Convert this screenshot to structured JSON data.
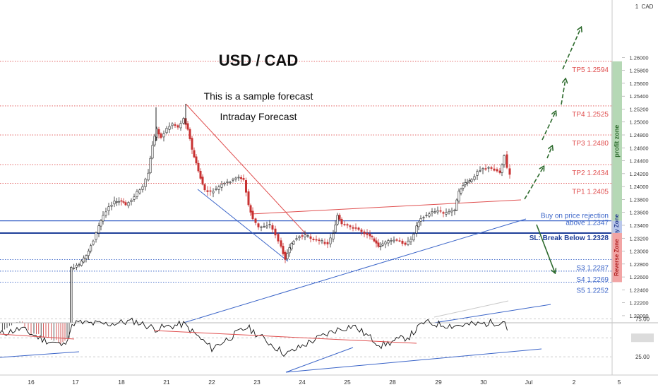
{
  "chart_data": {
    "type": "candlestick",
    "title": "USD / CAD",
    "subtitle_lines": [
      "This is a sample forecast",
      "Intraday Forecast"
    ],
    "currency_label": "CAD",
    "price_axis": {
      "min": 1.2189,
      "max": 1.2689,
      "ticks": [
        "1.22000",
        "1.22200",
        "1.22400",
        "1.22600",
        "1.22800",
        "1.23000",
        "1.23200",
        "1.23400",
        "1.23600",
        "1.23800",
        "1.24000",
        "1.24200",
        "1.24400",
        "1.24600",
        "1.24800",
        "1.25000",
        "1.25200",
        "1.25400",
        "1.25600",
        "1.25800",
        "1.26000"
      ]
    },
    "date_axis": {
      "labels": [
        "16",
        "17",
        "18",
        "21",
        "22",
        "23",
        "24",
        "25",
        "28",
        "29",
        "30",
        "Jul",
        "2",
        "5"
      ]
    },
    "levels": [
      {
        "label": "TP5 1.2594",
        "value": 1.2594,
        "color": "#e05050"
      },
      {
        "label": "TP4 1.2525",
        "value": 1.2525,
        "color": "#e05050"
      },
      {
        "label": "TP3 1.2480",
        "value": 1.248,
        "color": "#e05050"
      },
      {
        "label": "TP2 1.2434",
        "value": 1.2434,
        "color": "#e05050"
      },
      {
        "label": "TP1 1.2405",
        "value": 1.2405,
        "color": "#e05050"
      },
      {
        "label": "S3 1.2287",
        "value": 1.2287,
        "color": "#3a64c8"
      },
      {
        "label": "S4 1.2269",
        "value": 1.2269,
        "color": "#3a64c8"
      },
      {
        "label": "S5 1.2252",
        "value": 1.2252,
        "color": "#3a64c8"
      }
    ],
    "entry": {
      "label_line1": "Buy on price rejection",
      "label_line2": "above 1.2347",
      "value": 1.2347
    },
    "stop_loss": {
      "label": "SL: Break Below 1.2328",
      "value": 1.2328
    },
    "zones": [
      {
        "label": "profit zone",
        "from": 1.2347,
        "to": 1.2594,
        "color": "#b5d8b5"
      },
      {
        "label": "Buy Zone",
        "from": 1.2328,
        "to": 1.2347,
        "color": "#b8c6ea"
      },
      {
        "label": "Reverse Zone",
        "from": 1.2252,
        "to": 1.2328,
        "color": "#f2a4a4"
      }
    ],
    "last_price": 1.2391,
    "rsi": {
      "ticks": [
        "75.00",
        "50.00",
        "25.00"
      ],
      "current": 50.0
    }
  }
}
